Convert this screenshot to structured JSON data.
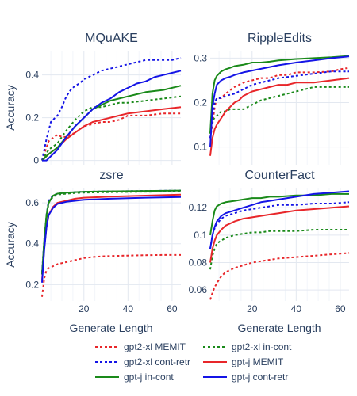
{
  "chart_data": {
    "type": "line",
    "shared_xlabel": "Generate Length",
    "shared_ylabel": "Accuracy",
    "legend_position": "bottom",
    "series_styles": [
      {
        "name": "gpt2-xl MEMIT",
        "color": "#e8262a",
        "dash": "dot"
      },
      {
        "name": "gpt2-xl in-cont",
        "color": "#1a8a1a",
        "dash": "dot"
      },
      {
        "name": "gpt2-xl cont-retr",
        "color": "#1414e6",
        "dash": "dot"
      },
      {
        "name": "gpt-j MEMIT",
        "color": "#e8262a",
        "dash": "solid"
      },
      {
        "name": "gpt-j in-cont",
        "color": "#1a8a1a",
        "dash": "solid"
      },
      {
        "name": "gpt-j cont-retr",
        "color": "#1414e6",
        "dash": "solid"
      }
    ],
    "panels": [
      {
        "title": "MQuAKE",
        "xlim": [
          1,
          64
        ],
        "ylim": [
          -0.02,
          0.51
        ],
        "xticks": [],
        "yticks": [
          0,
          0.2,
          0.4
        ],
        "ytick_labels": [
          "0",
          "0.2",
          "0.4"
        ],
        "series": [
          {
            "name": "gpt2-xl MEMIT",
            "x": [
              1,
              4,
              8,
              10,
              12,
              14,
              16,
              20,
              24,
              28,
              32,
              36,
              40,
              48,
              56,
              64
            ],
            "y": [
              0,
              0.09,
              0.12,
              0.11,
              0.11,
              0.12,
              0.13,
              0.16,
              0.17,
              0.18,
              0.18,
              0.19,
              0.21,
              0.21,
              0.22,
              0.22
            ]
          },
          {
            "name": "gpt2-xl in-cont",
            "x": [
              1,
              4,
              8,
              12,
              16,
              20,
              24,
              28,
              32,
              36,
              40,
              48,
              56,
              64
            ],
            "y": [
              0,
              0.05,
              0.08,
              0.14,
              0.19,
              0.23,
              0.25,
              0.25,
              0.26,
              0.27,
              0.27,
              0.28,
              0.29,
              0.3
            ]
          },
          {
            "name": "gpt2-xl cont-retr",
            "x": [
              1,
              3,
              5,
              8,
              10,
              12,
              14,
              16,
              18,
              20,
              24,
              28,
              32,
              36,
              40,
              44,
              48,
              52,
              56,
              60,
              64
            ],
            "y": [
              0,
              0.1,
              0.18,
              0.21,
              0.25,
              0.3,
              0.33,
              0.35,
              0.36,
              0.38,
              0.4,
              0.42,
              0.43,
              0.44,
              0.45,
              0.46,
              0.47,
              0.47,
              0.47,
              0.47,
              0.48
            ]
          },
          {
            "name": "gpt-j MEMIT",
            "x": [
              1,
              4,
              8,
              12,
              16,
              20,
              24,
              28,
              32,
              36,
              40,
              48,
              56,
              64
            ],
            "y": [
              0,
              0.03,
              0.06,
              0.1,
              0.13,
              0.16,
              0.18,
              0.19,
              0.2,
              0.21,
              0.22,
              0.23,
              0.24,
              0.25
            ]
          },
          {
            "name": "gpt-j in-cont",
            "x": [
              1,
              4,
              8,
              12,
              16,
              20,
              24,
              28,
              32,
              36,
              40,
              44,
              48,
              56,
              64
            ],
            "y": [
              0,
              0.03,
              0.06,
              0.11,
              0.16,
              0.2,
              0.24,
              0.26,
              0.28,
              0.29,
              0.3,
              0.31,
              0.32,
              0.33,
              0.35
            ]
          },
          {
            "name": "gpt-j cont-retr",
            "x": [
              1,
              3,
              5,
              8,
              12,
              16,
              20,
              24,
              28,
              32,
              36,
              40,
              44,
              48,
              52,
              56,
              60,
              64
            ],
            "y": [
              0,
              0,
              0.02,
              0.05,
              0.11,
              0.16,
              0.2,
              0.24,
              0.27,
              0.29,
              0.32,
              0.34,
              0.36,
              0.37,
              0.39,
              0.4,
              0.41,
              0.42
            ]
          }
        ]
      },
      {
        "title": "RippleEdits",
        "xlim": [
          1,
          64
        ],
        "ylim": [
          0.06,
          0.315
        ],
        "xticks": [],
        "yticks": [
          0.1,
          0.2,
          0.3
        ],
        "ytick_labels": [
          "0.1",
          "0.2",
          "0.3"
        ],
        "series": [
          {
            "name": "gpt2-xl MEMIT",
            "x": [
              1,
              2,
              3,
              4,
              6,
              8,
              12,
              16,
              20,
              24,
              28,
              32,
              36,
              40,
              48,
              56,
              60,
              64
            ],
            "y": [
              0.12,
              0.15,
              0.19,
              0.21,
              0.21,
              0.22,
              0.235,
              0.245,
              0.25,
              0.255,
              0.255,
              0.262,
              0.262,
              0.268,
              0.268,
              0.27,
              0.275,
              0.278
            ]
          },
          {
            "name": "gpt2-xl in-cont",
            "x": [
              1,
              2,
              4,
              6,
              8,
              10,
              12,
              16,
              20,
              24,
              28,
              32,
              36,
              40,
              44,
              48,
              56,
              64
            ],
            "y": [
              0.13,
              0.16,
              0.17,
              0.18,
              0.18,
              0.185,
              0.185,
              0.185,
              0.195,
              0.205,
              0.21,
              0.215,
              0.22,
              0.225,
              0.23,
              0.235,
              0.235,
              0.235
            ]
          },
          {
            "name": "gpt2-xl cont-retr",
            "x": [
              1,
              2,
              3,
              4,
              6,
              8,
              12,
              16,
              20,
              24,
              28,
              32,
              40,
              48,
              56,
              64
            ],
            "y": [
              0.12,
              0.17,
              0.2,
              0.21,
              0.21,
              0.215,
              0.22,
              0.23,
              0.24,
              0.245,
              0.25,
              0.255,
              0.26,
              0.265,
              0.27,
              0.27
            ]
          },
          {
            "name": "gpt-j MEMIT",
            "x": [
              1,
              2,
              3,
              4,
              6,
              8,
              10,
              12,
              14,
              16,
              20,
              24,
              28,
              32,
              36,
              40,
              48,
              56,
              64
            ],
            "y": [
              0.08,
              0.12,
              0.14,
              0.15,
              0.165,
              0.18,
              0.19,
              0.2,
              0.205,
              0.215,
              0.225,
              0.23,
              0.235,
              0.24,
              0.24,
              0.245,
              0.245,
              0.25,
              0.255
            ]
          },
          {
            "name": "gpt-j in-cont",
            "x": [
              1,
              2,
              3,
              4,
              5,
              6,
              8,
              10,
              12,
              16,
              20,
              24,
              28,
              32,
              40,
              48,
              56,
              64
            ],
            "y": [
              0.13,
              0.22,
              0.25,
              0.26,
              0.265,
              0.27,
              0.275,
              0.278,
              0.282,
              0.285,
              0.29,
              0.29,
              0.292,
              0.295,
              0.298,
              0.3,
              0.302,
              0.305
            ]
          },
          {
            "name": "gpt-j cont-retr",
            "x": [
              1,
              2,
              3,
              4,
              6,
              8,
              10,
              12,
              16,
              20,
              24,
              28,
              32,
              40,
              48,
              56,
              64
            ],
            "y": [
              0.1,
              0.19,
              0.22,
              0.24,
              0.25,
              0.255,
              0.258,
              0.262,
              0.268,
              0.272,
              0.276,
              0.28,
              0.284,
              0.29,
              0.295,
              0.3,
              0.304
            ]
          }
        ]
      },
      {
        "title": "zsre",
        "xlim": [
          1,
          64
        ],
        "ylim": [
          0.12,
          0.67
        ],
        "xticks": [
          20,
          40,
          60
        ],
        "yticks": [
          0.2,
          0.4,
          0.6
        ],
        "ytick_labels": [
          "0.2",
          "0.4",
          "0.6"
        ],
        "series": [
          {
            "name": "gpt2-xl MEMIT",
            "x": [
              1,
              2,
              3,
              4,
              6,
              8,
              12,
              16,
              20,
              24,
              28,
              32,
              40,
              48,
              56,
              64
            ],
            "y": [
              0.14,
              0.23,
              0.27,
              0.28,
              0.29,
              0.3,
              0.31,
              0.32,
              0.33,
              0.335,
              0.338,
              0.34,
              0.342,
              0.344,
              0.345,
              0.345
            ]
          },
          {
            "name": "gpt2-xl in-cont",
            "x": [
              1,
              2,
              3,
              4,
              6,
              8,
              12,
              16,
              20,
              32,
              48,
              64
            ],
            "y": [
              0.25,
              0.4,
              0.52,
              0.6,
              0.63,
              0.64,
              0.645,
              0.648,
              0.65,
              0.652,
              0.654,
              0.655
            ]
          },
          {
            "name": "gpt2-xl cont-retr",
            "x": [
              1,
              2,
              3,
              4,
              6,
              8,
              12,
              16,
              20,
              32,
              48,
              64
            ],
            "y": [
              0.26,
              0.42,
              0.54,
              0.61,
              0.635,
              0.645,
              0.65,
              0.652,
              0.654,
              0.656,
              0.658,
              0.66
            ]
          },
          {
            "name": "gpt-j MEMIT",
            "x": [
              1,
              2,
              3,
              4,
              6,
              8,
              12,
              16,
              20,
              32,
              48,
              64
            ],
            "y": [
              0.22,
              0.38,
              0.48,
              0.54,
              0.58,
              0.6,
              0.61,
              0.62,
              0.625,
              0.63,
              0.635,
              0.64
            ]
          },
          {
            "name": "gpt-j in-cont",
            "x": [
              1,
              2,
              3,
              4,
              6,
              8,
              12,
              16,
              20,
              32,
              48,
              64
            ],
            "y": [
              0.25,
              0.42,
              0.54,
              0.6,
              0.635,
              0.645,
              0.65,
              0.652,
              0.654,
              0.656,
              0.658,
              0.66
            ]
          },
          {
            "name": "gpt-j cont-retr",
            "x": [
              1,
              2,
              3,
              4,
              6,
              8,
              12,
              16,
              20,
              32,
              48,
              64
            ],
            "y": [
              0.21,
              0.37,
              0.48,
              0.54,
              0.575,
              0.595,
              0.605,
              0.61,
              0.615,
              0.62,
              0.625,
              0.628
            ]
          }
        ]
      },
      {
        "title": "CounterFact",
        "xlim": [
          1,
          64
        ],
        "ylim": [
          0.052,
          0.134
        ],
        "xticks": [
          20,
          40,
          60
        ],
        "yticks": [
          0.06,
          0.08,
          0.1,
          0.12
        ],
        "ytick_labels": [
          "0.06",
          "0.08",
          "0.1",
          "0.12"
        ],
        "series": [
          {
            "name": "gpt2-xl MEMIT",
            "x": [
              1,
              2,
              3,
              4,
              6,
              8,
              12,
              16,
              20,
              24,
              28,
              32,
              40,
              48,
              56,
              64
            ],
            "y": [
              0.053,
              0.058,
              0.062,
              0.065,
              0.07,
              0.073,
              0.076,
              0.078,
              0.08,
              0.081,
              0.082,
              0.083,
              0.084,
              0.085,
              0.086,
              0.087
            ]
          },
          {
            "name": "gpt2-xl in-cont",
            "x": [
              1,
              2,
              3,
              4,
              6,
              8,
              12,
              16,
              20,
              24,
              28,
              32,
              40,
              48,
              56,
              64
            ],
            "y": [
              0.075,
              0.085,
              0.09,
              0.094,
              0.096,
              0.098,
              0.1,
              0.101,
              0.102,
              0.102,
              0.103,
              0.103,
              0.103,
              0.104,
              0.104,
              0.104
            ]
          },
          {
            "name": "gpt2-xl cont-retr",
            "x": [
              1,
              2,
              3,
              4,
              6,
              8,
              12,
              16,
              20,
              24,
              28,
              32,
              40,
              48,
              56,
              64
            ],
            "y": [
              0.09,
              0.1,
              0.105,
              0.108,
              0.112,
              0.114,
              0.116,
              0.118,
              0.119,
              0.12,
              0.121,
              0.122,
              0.122,
              0.123,
              0.123,
              0.124
            ]
          },
          {
            "name": "gpt-j MEMIT",
            "x": [
              1,
              2,
              3,
              4,
              6,
              8,
              12,
              16,
              20,
              24,
              28,
              32,
              40,
              48,
              56,
              64
            ],
            "y": [
              0.08,
              0.09,
              0.096,
              0.1,
              0.104,
              0.107,
              0.11,
              0.112,
              0.113,
              0.114,
              0.115,
              0.116,
              0.118,
              0.119,
              0.12,
              0.121
            ]
          },
          {
            "name": "gpt-j in-cont",
            "x": [
              1,
              2,
              3,
              4,
              6,
              8,
              12,
              16,
              20,
              24,
              28,
              32,
              40,
              48,
              56,
              64
            ],
            "y": [
              0.1,
              0.11,
              0.118,
              0.121,
              0.123,
              0.124,
              0.125,
              0.126,
              0.127,
              0.127,
              0.128,
              0.128,
              0.129,
              0.129,
              0.13,
              0.13
            ]
          },
          {
            "name": "gpt-j cont-retr",
            "x": [
              1,
              2,
              3,
              4,
              6,
              8,
              12,
              16,
              20,
              24,
              28,
              32,
              40,
              48,
              56,
              64
            ],
            "y": [
              0.09,
              0.1,
              0.106,
              0.11,
              0.114,
              0.116,
              0.118,
              0.12,
              0.122,
              0.124,
              0.125,
              0.126,
              0.128,
              0.13,
              0.131,
              0.132
            ]
          }
        ]
      }
    ]
  }
}
